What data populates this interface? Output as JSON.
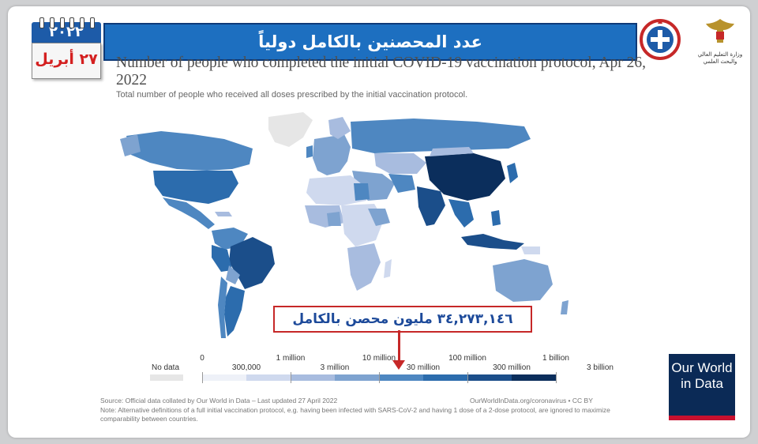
{
  "header": {
    "banner_ar": "عدد المحصنين بالكامل دولياً",
    "calendar_year": "٢٠٢٢",
    "calendar_date": "٢٧ أبريل",
    "ministry_label": "وزارة التعليم العالي والبحث العلمي"
  },
  "chart": {
    "title": "Number of people who completed the initial COVID-19 vaccination protocol, Apr 26, 2022",
    "subtitle": "Total number of people who received all doses prescribed by the initial vaccination protocol.",
    "callout_ar": "٣٤,٢٧٣,١٤٦ مليون محصن بالكامل",
    "legend": {
      "no_data": "No data",
      "top_labels": [
        "0",
        "1 million",
        "10 million",
        "100 million",
        "1 billion"
      ],
      "bottom_labels": [
        "300,000",
        "3 million",
        "30 million",
        "300 million",
        "3 billion"
      ],
      "colors": [
        "#e6e6e6",
        "#eef1f8",
        "#cfd9ee",
        "#a8bcdf",
        "#7ea3d0",
        "#4e87c1",
        "#2c6cad",
        "#1b4e8a",
        "#0b2e5c"
      ]
    }
  },
  "chart_data": {
    "type": "choropleth",
    "title": "Number of people who completed the initial COVID-19 vaccination protocol, Apr 26, 2022",
    "legend_bins": [
      "0",
      "300,000",
      "1 million",
      "3 million",
      "10 million",
      "30 million",
      "100 million",
      "300 million",
      "1 billion",
      "3 billion"
    ],
    "highlighted_value": "٣٤,٢٧٣,١٤٦"
  },
  "branding": {
    "owid_line1": "Our World",
    "owid_line2": "in Data"
  },
  "footer": {
    "source": "Source: Official data collated by Our World in Data – Last updated 27 April 2022",
    "source_right": "OurWorldInData.org/coronavirus • CC BY",
    "note": "Note: Alternative definitions of a full initial vaccination protocol, e.g. having been infected with SARS-CoV-2 and having 1 dose of a 2-dose protocol, are ignored to maximize comparability between countries."
  }
}
